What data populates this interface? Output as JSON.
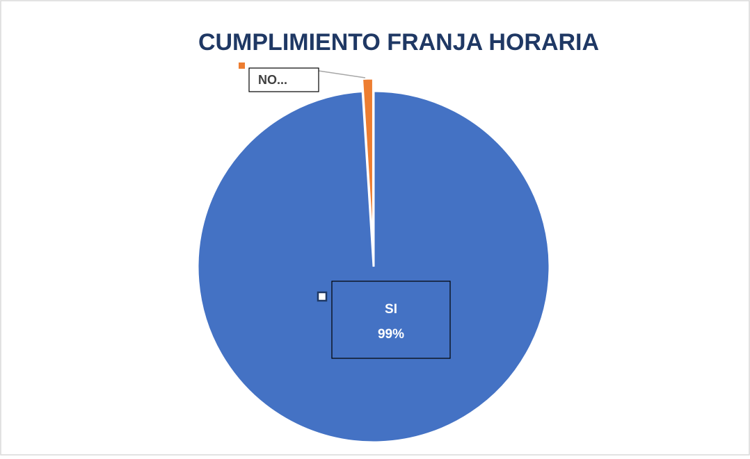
{
  "chart_data": {
    "type": "pie",
    "title": "CUMPLIMIENTO FRANJA HORARIA",
    "categories": [
      "SI",
      "NO..."
    ],
    "values": [
      99,
      1
    ],
    "value_labels": [
      "99%",
      null
    ],
    "colors": [
      "#4472c4",
      "#ed7d31"
    ]
  }
}
